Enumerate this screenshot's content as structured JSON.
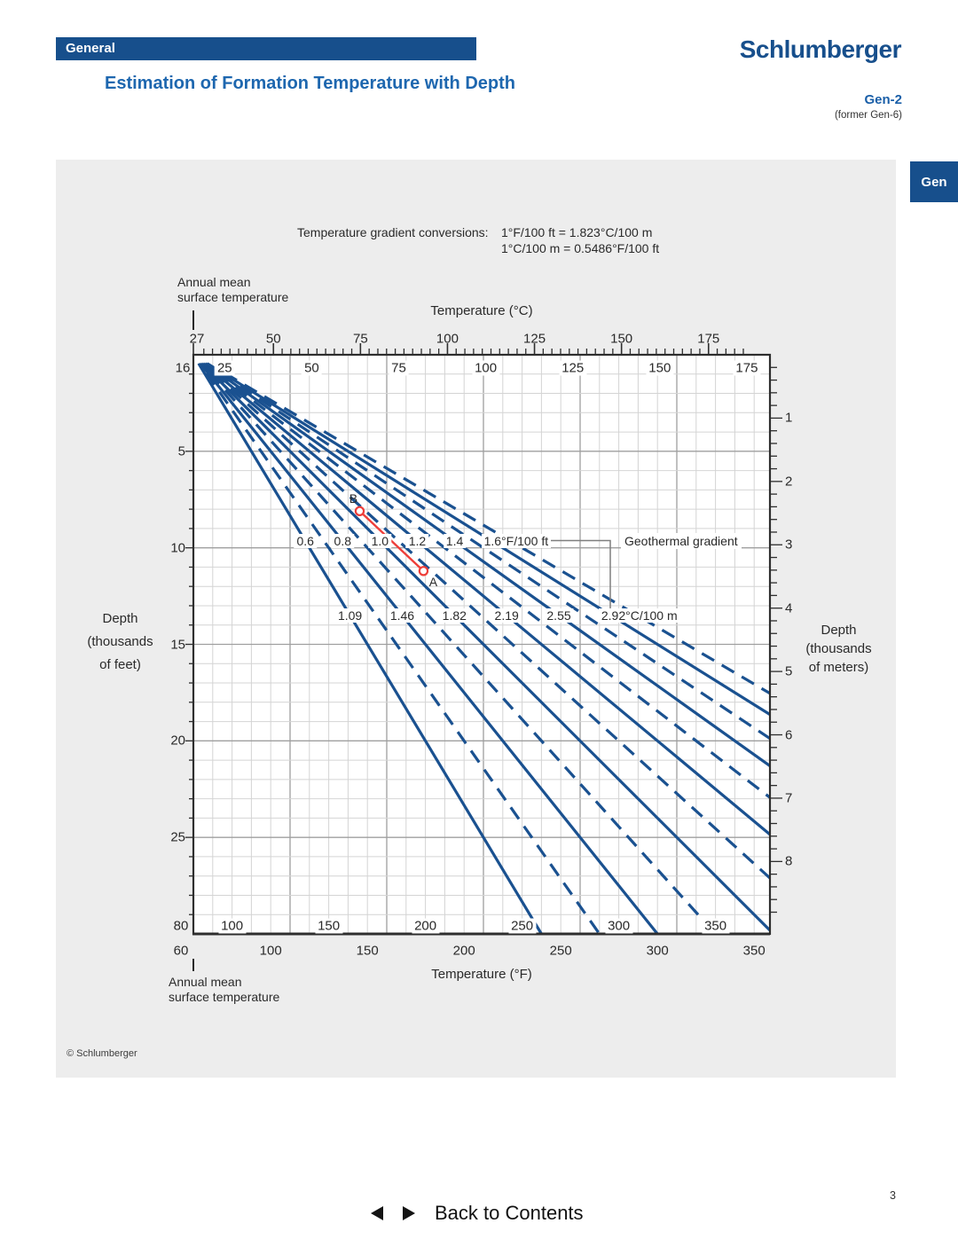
{
  "header": {
    "section_label": "General",
    "logo": "Schlumberger",
    "title": "Estimation of Formation Temperature with Depth",
    "chart_code": "Gen-2",
    "chart_code_former": "(former Gen-6)",
    "side_tab": "Gen"
  },
  "conversions": {
    "label": "Temperature gradient conversions:",
    "line1": "1°F/100 ft = 1.823°C/100 m",
    "line2": "1°C/100 m = 0.5486°F/100 ft"
  },
  "annual_mean": {
    "line1": "Annual mean",
    "line2": "surface temperature",
    "top_value_c": 27,
    "bottom_value_f": 60
  },
  "copyright": "© Schlumberger",
  "footer": {
    "prev_icon": "left-arrow",
    "next_icon": "right-arrow",
    "back_label": "Back to Contents"
  },
  "page": {
    "number": "3"
  },
  "chart_data": {
    "type": "line",
    "title": "Estimation of Formation Temperature with Depth",
    "axes": {
      "top_outer_c": {
        "label": "Temperature (°C)",
        "surface_ref_c": 27,
        "ticks": [
          27,
          50,
          75,
          100,
          125,
          150,
          175
        ],
        "minor_step_c": 2.5
      },
      "top_inner_c": {
        "surface_ref_c": 16,
        "ticks": [
          16,
          25,
          50,
          75,
          100,
          125,
          150,
          175
        ]
      },
      "bottom_inner_f": {
        "surface_ref_f": 80,
        "ticks": [
          80,
          100,
          150,
          200,
          250,
          300,
          350
        ]
      },
      "bottom_outer_f": {
        "label": "Temperature (°F)",
        "surface_ref_f": 60,
        "ticks": [
          60,
          100,
          150,
          200,
          250,
          300,
          350
        ]
      },
      "left_depth_kft": {
        "label_lines": [
          "Depth",
          "(thousands",
          "of feet)"
        ],
        "ticks": [
          5,
          10,
          15,
          20,
          25
        ],
        "range": [
          0,
          30
        ],
        "minor_step": 1
      },
      "right_depth_km": {
        "label_lines": [
          "Depth",
          "(thousands",
          "of meters)"
        ],
        "ticks": [
          1,
          2,
          3,
          4,
          5,
          6,
          7,
          8
        ],
        "minor_step": 0.2
      }
    },
    "grid": {
      "minor_f_step": 10,
      "major_f_step": 50,
      "minor_depth_step_kft": 1,
      "major_depth_step_kft": 5
    },
    "gradient_lines": {
      "group_label": "Geothermal gradient",
      "solid_f_per_100ft": [
        0.6,
        0.8,
        1.0,
        1.2,
        1.4,
        1.6
      ],
      "dashed_f_per_100ft": [
        0.7,
        0.9,
        1.1,
        1.3,
        1.5,
        1.7
      ],
      "labels_f": [
        "0.6",
        "0.8",
        "1.0",
        "1.2",
        "1.4",
        "1.6°F/100 ft"
      ],
      "labels_f_row_depth_kft": 9.65,
      "labels_c": [
        "1.09",
        "1.46",
        "1.82",
        "2.19",
        "2.55",
        "2.92°C/100 m"
      ],
      "labels_c_row_depth_kft": 13.5
    },
    "example": {
      "points": [
        {
          "name": "B",
          "temp_f": 166,
          "depth_kft": 8.1
        },
        {
          "name": "A",
          "temp_f": 199,
          "depth_kft": 11.2
        }
      ]
    },
    "colors": {
      "line_blue": "#1a5190",
      "red": "#ee3e39",
      "grid_minor": "#d4d4d4",
      "grid_major": "#9f9f9f",
      "frame": "#2e2e2e",
      "panel_bg": "#ededed",
      "brand_blue": "#174f8c",
      "title_blue": "#1e67af",
      "connector_gray": "#7f7f7f"
    }
  }
}
